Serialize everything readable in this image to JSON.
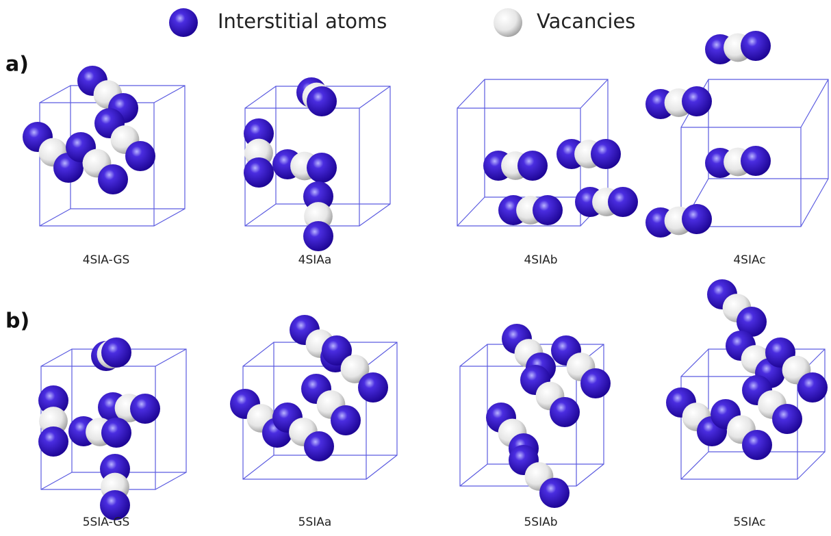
{
  "legend": {
    "interstitial": "Interstitial atoms",
    "vacancy": "Vacancies"
  },
  "panels": [
    {
      "label": "a)",
      "structures": [
        "4SIA-GS",
        "4SIAa",
        "4SIAb",
        "4SIAc"
      ]
    },
    {
      "label": "b)",
      "structures": [
        "5SIA-GS",
        "5SIAa",
        "5SIAb",
        "5SIAc"
      ]
    }
  ]
}
